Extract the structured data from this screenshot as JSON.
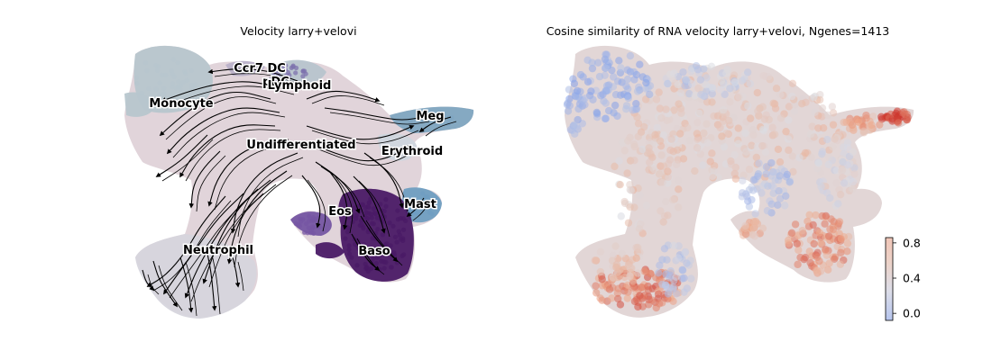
{
  "chart_data": [
    {
      "type": "scatter",
      "subtype": "velocity-streamplot-embedding",
      "title": "Velocity larry+velovi",
      "xlabel": "",
      "ylabel": "",
      "grid": false,
      "clusters": [
        {
          "name": "Ccr7 DC",
          "color": "#b9b1c9"
        },
        {
          "name": "pDC",
          "color": "#7e72ad"
        },
        {
          "name": "Lymphoid",
          "color": "#b7c4ce"
        },
        {
          "name": "Monocyte",
          "color": "#b7c6cd"
        },
        {
          "name": "Meg",
          "color": "#7fa6c1"
        },
        {
          "name": "Undifferentiated",
          "color": "#e1d4da"
        },
        {
          "name": "Erythroid",
          "color": "#cfd6de"
        },
        {
          "name": "Eos",
          "color": "#7556a3"
        },
        {
          "name": "Mast",
          "color": "#6f9ec1"
        },
        {
          "name": "Baso",
          "color": "#4a1a66"
        },
        {
          "name": "Neutrophil",
          "color": "#d6d5dd"
        }
      ],
      "stream_color": "#000000"
    },
    {
      "type": "scatter",
      "subtype": "embedding-colored-by-value",
      "title": "Cosine similarity of RNA velocity larry+velovi, Ngenes=1413",
      "xlabel": "",
      "ylabel": "",
      "grid": false,
      "colormap": "coolwarm",
      "colorbar": {
        "ticks": [
          0.0,
          0.4,
          0.8
        ],
        "tick_labels": [
          "0.0",
          "0.4",
          "0.8"
        ],
        "range": [
          -0.08,
          0.86
        ],
        "position": "right"
      },
      "value_summary": {
        "typical": 0.45,
        "meg_tip_max": 0.85,
        "neutrophil_tip": 0.7,
        "baso_region": 0.65,
        "monocyte_edges": 0.05
      }
    }
  ]
}
